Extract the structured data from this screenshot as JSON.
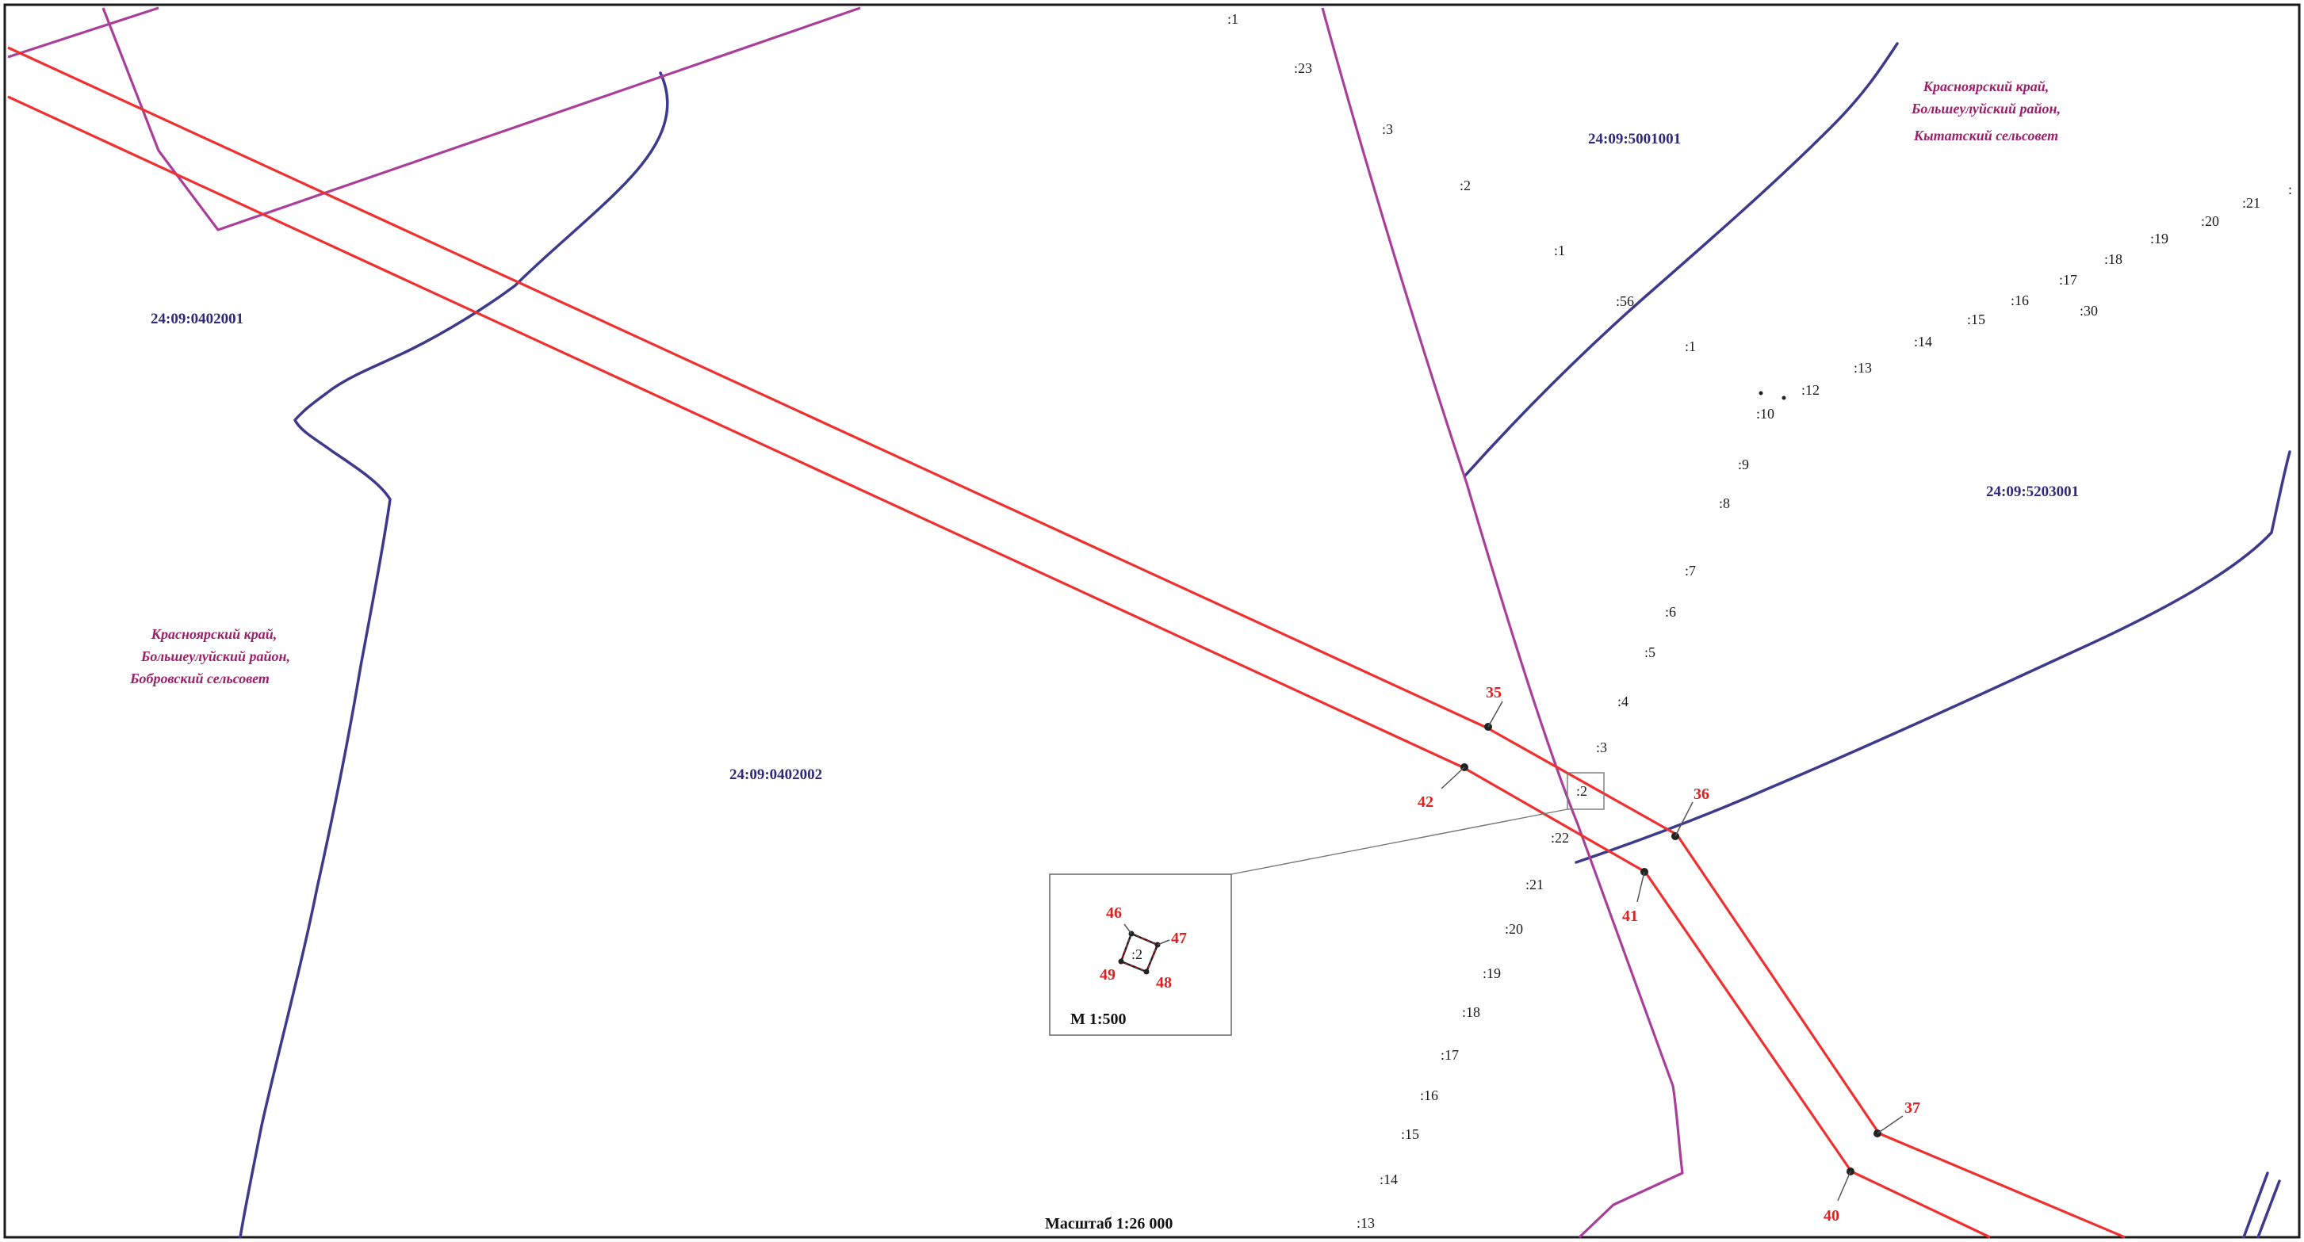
{
  "quarters": [
    "24:09:0402001",
    "24:09:0402002",
    "24:09:5001001",
    "24:09:5203001"
  ],
  "regions": {
    "bobrovsky": [
      "Красноярский край,",
      "Большеулуйский район,",
      "Бобровский сельсовет"
    ],
    "kytatsky": [
      "Красноярский край,",
      "Большеулуйский район,",
      "Кытатский сельсовет"
    ]
  },
  "parcel_labels": {
    "top": [
      ":1",
      ":23",
      ":3",
      ":2",
      ":1",
      ":56",
      ":1"
    ],
    "ne_chain": [
      ":10",
      ":12",
      ":13",
      ":14",
      ":15",
      ":16",
      ":17",
      ":18",
      ":19",
      ":20",
      ":21",
      ":30"
    ],
    "middle_chain": [
      ":9",
      ":8",
      ":7",
      ":6",
      ":5",
      ":4",
      ":3",
      ":2"
    ],
    "south_chain": [
      ":22",
      ":21",
      ":20",
      ":19",
      ":18",
      ":17",
      ":16",
      ":15",
      ":14",
      ":13"
    ],
    "edge": ":"
  },
  "points": [
    "35",
    "36",
    "37",
    "40",
    "41",
    "42"
  ],
  "inset": {
    "points": [
      "46",
      "47",
      "48",
      "49"
    ],
    "parcel": ":2",
    "scale": "М 1:500"
  },
  "scale_label": "Масштаб 1:26 000",
  "colors": {
    "boundary_blue": "#3d3a8c",
    "boundary_purple": "#a8409a",
    "corridor_red": "#ee3030",
    "label_red": "#e02020",
    "region_text": "#9b1f6a",
    "quarter_text": "#2d2a78"
  }
}
